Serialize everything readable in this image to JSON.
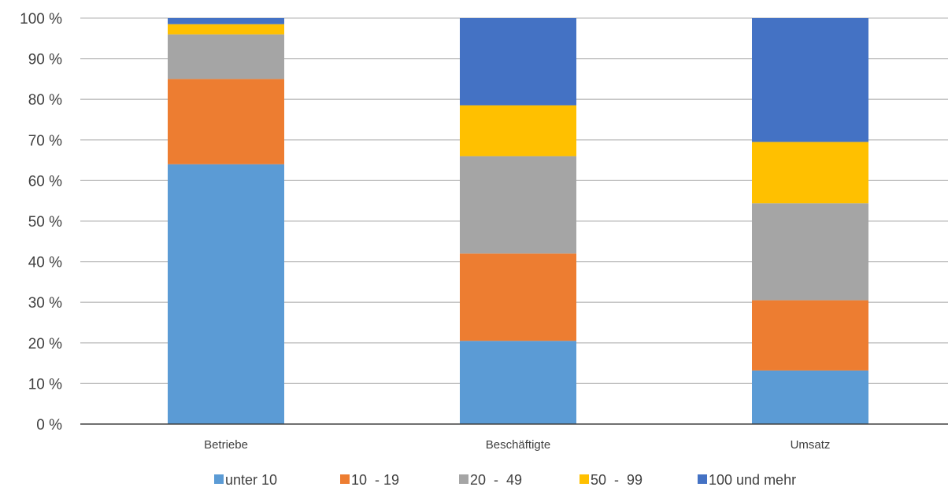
{
  "chart_data": {
    "type": "bar",
    "stacked": true,
    "categories": [
      "Betriebe",
      "Beschäftigte",
      "Umsatz"
    ],
    "series": [
      {
        "name": "unter 10",
        "color": "#5B9BD5",
        "values": [
          64.0,
          20.5,
          13.2
        ]
      },
      {
        "name": "10  - 19",
        "color": "#ED7D31",
        "values": [
          21.0,
          21.5,
          17.3
        ]
      },
      {
        "name": "20  -  49",
        "color": "#A5A5A5",
        "values": [
          11.0,
          24.0,
          23.9
        ]
      },
      {
        "name": "50  -  99",
        "color": "#FFC000",
        "values": [
          2.5,
          12.5,
          15.1
        ]
      },
      {
        "name": "100 und mehr",
        "color": "#4472C4",
        "values": [
          1.5,
          21.5,
          30.5
        ]
      }
    ],
    "ylim": [
      0,
      100
    ],
    "yticks": [
      "0 %",
      "10 %",
      "20 %",
      "30 %",
      "40 %",
      "50 %",
      "60 %",
      "70 %",
      "80 %",
      "90 %",
      "100 %"
    ],
    "grid": true,
    "legend_position": "bottom",
    "title": "",
    "xlabel": "",
    "ylabel": ""
  }
}
